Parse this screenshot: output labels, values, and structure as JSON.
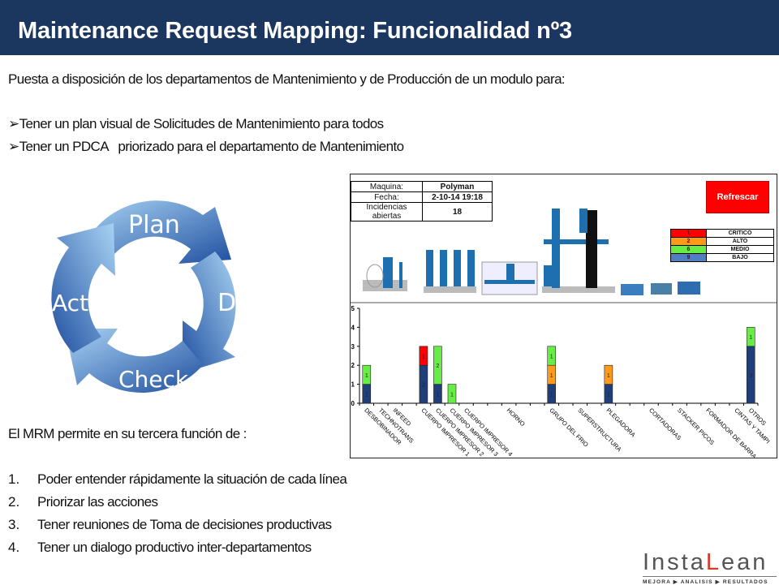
{
  "header": {
    "title": "Maintenance Request Mapping: Funcionalidad nº3"
  },
  "intro": "Puesta a disposición de los departamentos de Mantenimiento y de Producción de un modulo para:",
  "bullets": [
    "Tener un plan visual de Solicitudes de Mantenimiento para todos",
    "Tener un PDCA   priorizado para el departamento de Mantenimiento"
  ],
  "bullet_marker": "➢",
  "pdca": {
    "plan": "Plan",
    "do": "Do",
    "check": "Check",
    "act": "Act",
    "colors": {
      "dark": "#1f4fa0",
      "light": "#9cc8ee"
    }
  },
  "dashboard": {
    "info": [
      {
        "label": "Maquina:",
        "value": "Polyman"
      },
      {
        "label": "Fecha:",
        "value": "2-10-14 19:18"
      },
      {
        "label": "Incidencias abiertas",
        "value": "18"
      }
    ],
    "refresh_label": "Refrescar",
    "legend": [
      {
        "count": "1",
        "label": "CRITICO",
        "color": "#ff0000"
      },
      {
        "count": "2",
        "label": "ALTO",
        "color": "#ff9a1a"
      },
      {
        "count": "6",
        "label": "MEDIO",
        "color": "#66ee44"
      },
      {
        "count": "9",
        "label": "BAJO",
        "color": "#4f7fc0"
      }
    ]
  },
  "chart_data": {
    "type": "bar",
    "stacked": true,
    "categories": [
      "DESBOBINADOR",
      "TECHNOTRANS",
      "INFEED",
      "CUERPO IMPRESOR 1",
      "CUERPO IMPRESOR 2",
      "CUERPO IMPRESOR 3",
      "CUERPO IMPRESOR 4",
      "HORNO",
      "GRUPO DEL FRIO",
      "SUPERSTRUCTURA",
      "PLEGADORA",
      "CORTADORAS",
      "STACKER PICOS",
      "FORMADOR DE BARRA",
      "CINTAS Y TAMPI",
      "OTROS"
    ],
    "ylim": [
      0,
      5
    ],
    "yticks": [
      "0",
      "1",
      "2",
      "3",
      "4",
      "5"
    ],
    "series": [
      {
        "key": "bajo",
        "color": "#1f3f7a",
        "values": [
          1,
          0,
          0,
          2,
          1,
          0,
          0,
          0,
          1,
          0,
          1,
          0,
          0,
          0,
          0,
          3
        ]
      },
      {
        "key": "alto",
        "color": "#ff9a1a",
        "values": [
          0,
          0,
          0,
          0,
          0,
          0,
          0,
          0,
          1,
          0,
          1,
          0,
          0,
          0,
          0,
          0
        ]
      },
      {
        "key": "medio",
        "color": "#66ee44",
        "values": [
          1,
          0,
          0,
          0,
          2,
          1,
          0,
          0,
          1,
          0,
          0,
          0,
          0,
          0,
          0,
          1
        ]
      },
      {
        "key": "critico",
        "color": "#ff0000",
        "values": [
          0,
          0,
          0,
          1,
          0,
          0,
          0,
          0,
          0,
          0,
          0,
          0,
          0,
          0,
          0,
          0
        ]
      }
    ]
  },
  "mrm_intro": "El MRM permite en su tercera función de :",
  "list": [
    {
      "n": "1.",
      "text": "Poder entender rápidamente la situación de cada línea"
    },
    {
      "n": "2.",
      "text": "Priorizar las acciones"
    },
    {
      "n": "3.",
      "text": "Tener reuniones de Toma de decisiones productivas"
    },
    {
      "n": "4.",
      "text": "Tener un dialogo productivo inter-departamentos"
    }
  ],
  "logo": {
    "wordmark_a": "Insta",
    "wordmark_b": "L",
    "wordmark_c": "ean",
    "tagline": "MEJORA ▶ ANALISIS ▶ RESULTADOS"
  }
}
